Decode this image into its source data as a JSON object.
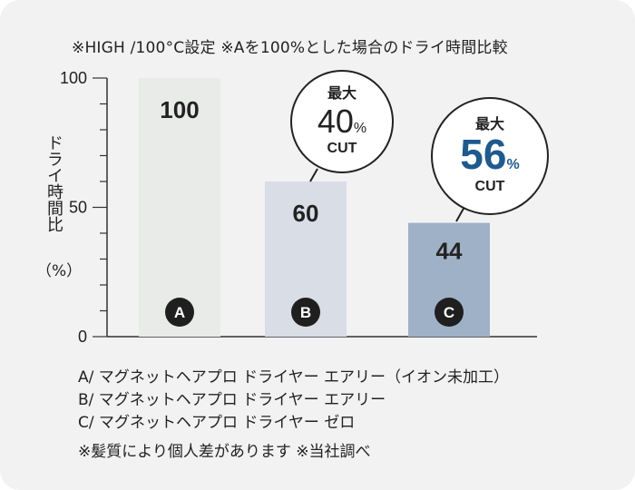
{
  "header_note": "※HIGH /100°C設定 ※Aを100%とした場合のドライ時間比較",
  "y_axis_label": "ドライ時間比",
  "y_axis_unit": "（%）",
  "legend": [
    "A/ マグネットヘアプロ ドライヤー エアリー（イオン未加工）",
    "B/ マグネットヘアプロ ドライヤー エアリー",
    "C/ マグネットヘアプロ ドライヤー ゼロ"
  ],
  "footnote": "※髪質により個人差があります ※当社調べ",
  "colors": {
    "bar_a": "#e9ebe9",
    "bar_b": "#d8dde6",
    "bar_c": "#9fb1c7",
    "badge": "#1f1f1f",
    "accent_blue": "#1f5a8e",
    "axis": "#333333"
  },
  "callouts": [
    {
      "title": "最大",
      "value": "40",
      "unit": "%",
      "cut": "CUT",
      "emphasis": false
    },
    {
      "title": "最大",
      "value": "56",
      "unit": "%",
      "cut": "CUT",
      "emphasis": true
    }
  ],
  "chart_data": {
    "type": "bar",
    "categories": [
      "A",
      "B",
      "C"
    ],
    "values": [
      100,
      60,
      44
    ],
    "ylim": [
      0,
      100
    ],
    "yticks": [
      0,
      50,
      100
    ],
    "ylabel": "ドライ時間比（%）",
    "grid": false
  }
}
